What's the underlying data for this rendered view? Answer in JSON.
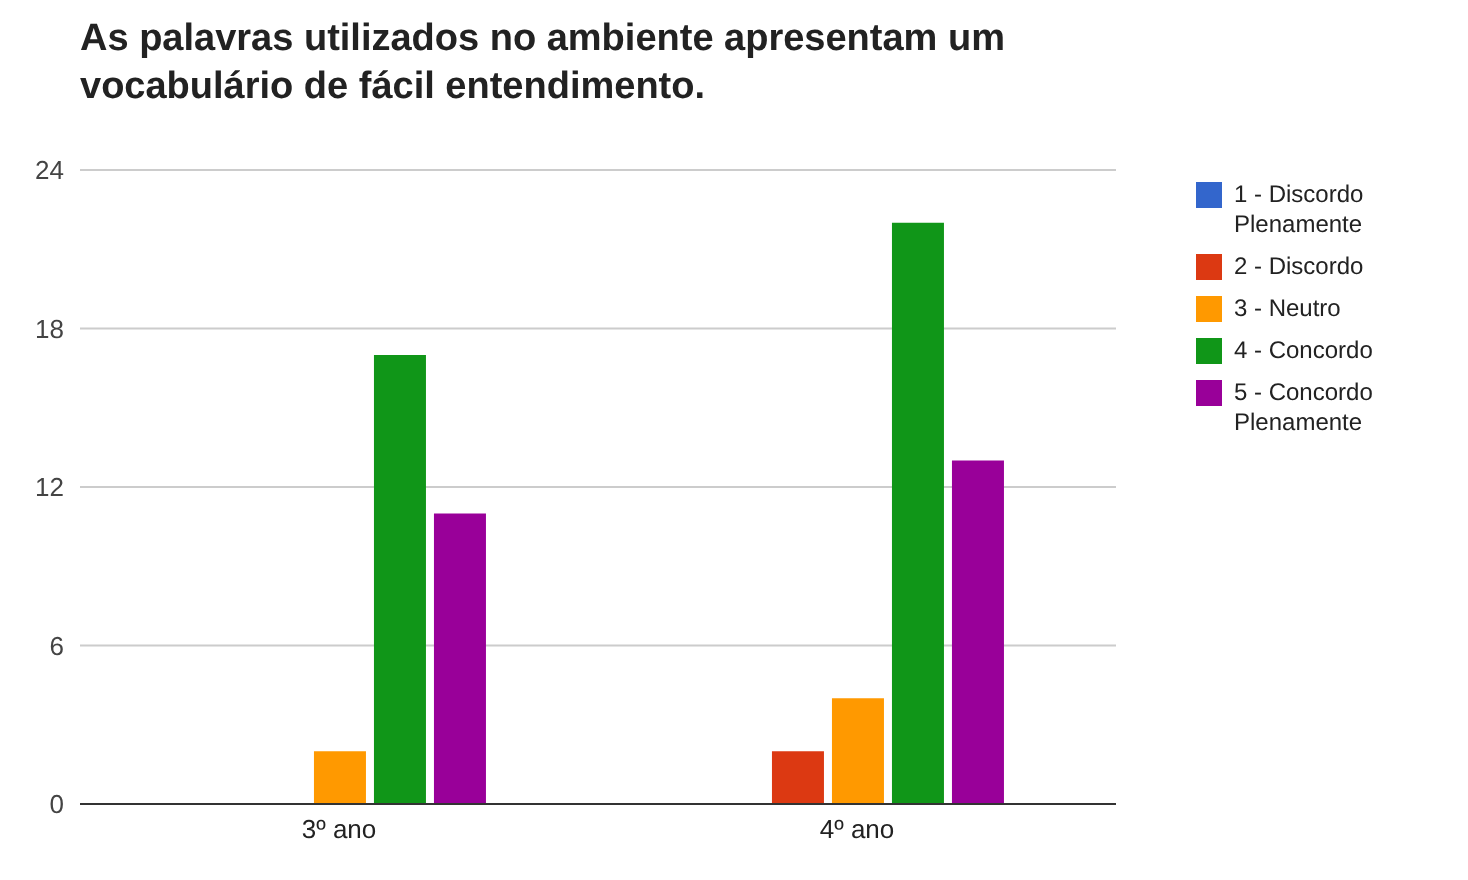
{
  "chart_data": {
    "type": "bar",
    "title": "As palavras utilizados no ambiente apresentam um vocabulário de fácil entendimento.",
    "categories": [
      "3º ano",
      "4º ano"
    ],
    "series": [
      {
        "name": "1 - Discordo Plenamente",
        "color": "#3366cc",
        "values": [
          0,
          0
        ]
      },
      {
        "name": "2 - Discordo",
        "color": "#dc3912",
        "values": [
          0,
          2
        ]
      },
      {
        "name": "3 - Neutro",
        "color": "#ff9900",
        "values": [
          2,
          4
        ]
      },
      {
        "name": "4 - Concordo",
        "color": "#109618",
        "values": [
          17,
          22
        ]
      },
      {
        "name": "5 - Concordo Plenamente",
        "color": "#990099",
        "values": [
          11,
          13
        ]
      }
    ],
    "ylim": [
      0,
      24
    ],
    "yticks": [
      0,
      6,
      12,
      18,
      24
    ],
    "grid": "y",
    "legend": "right"
  }
}
